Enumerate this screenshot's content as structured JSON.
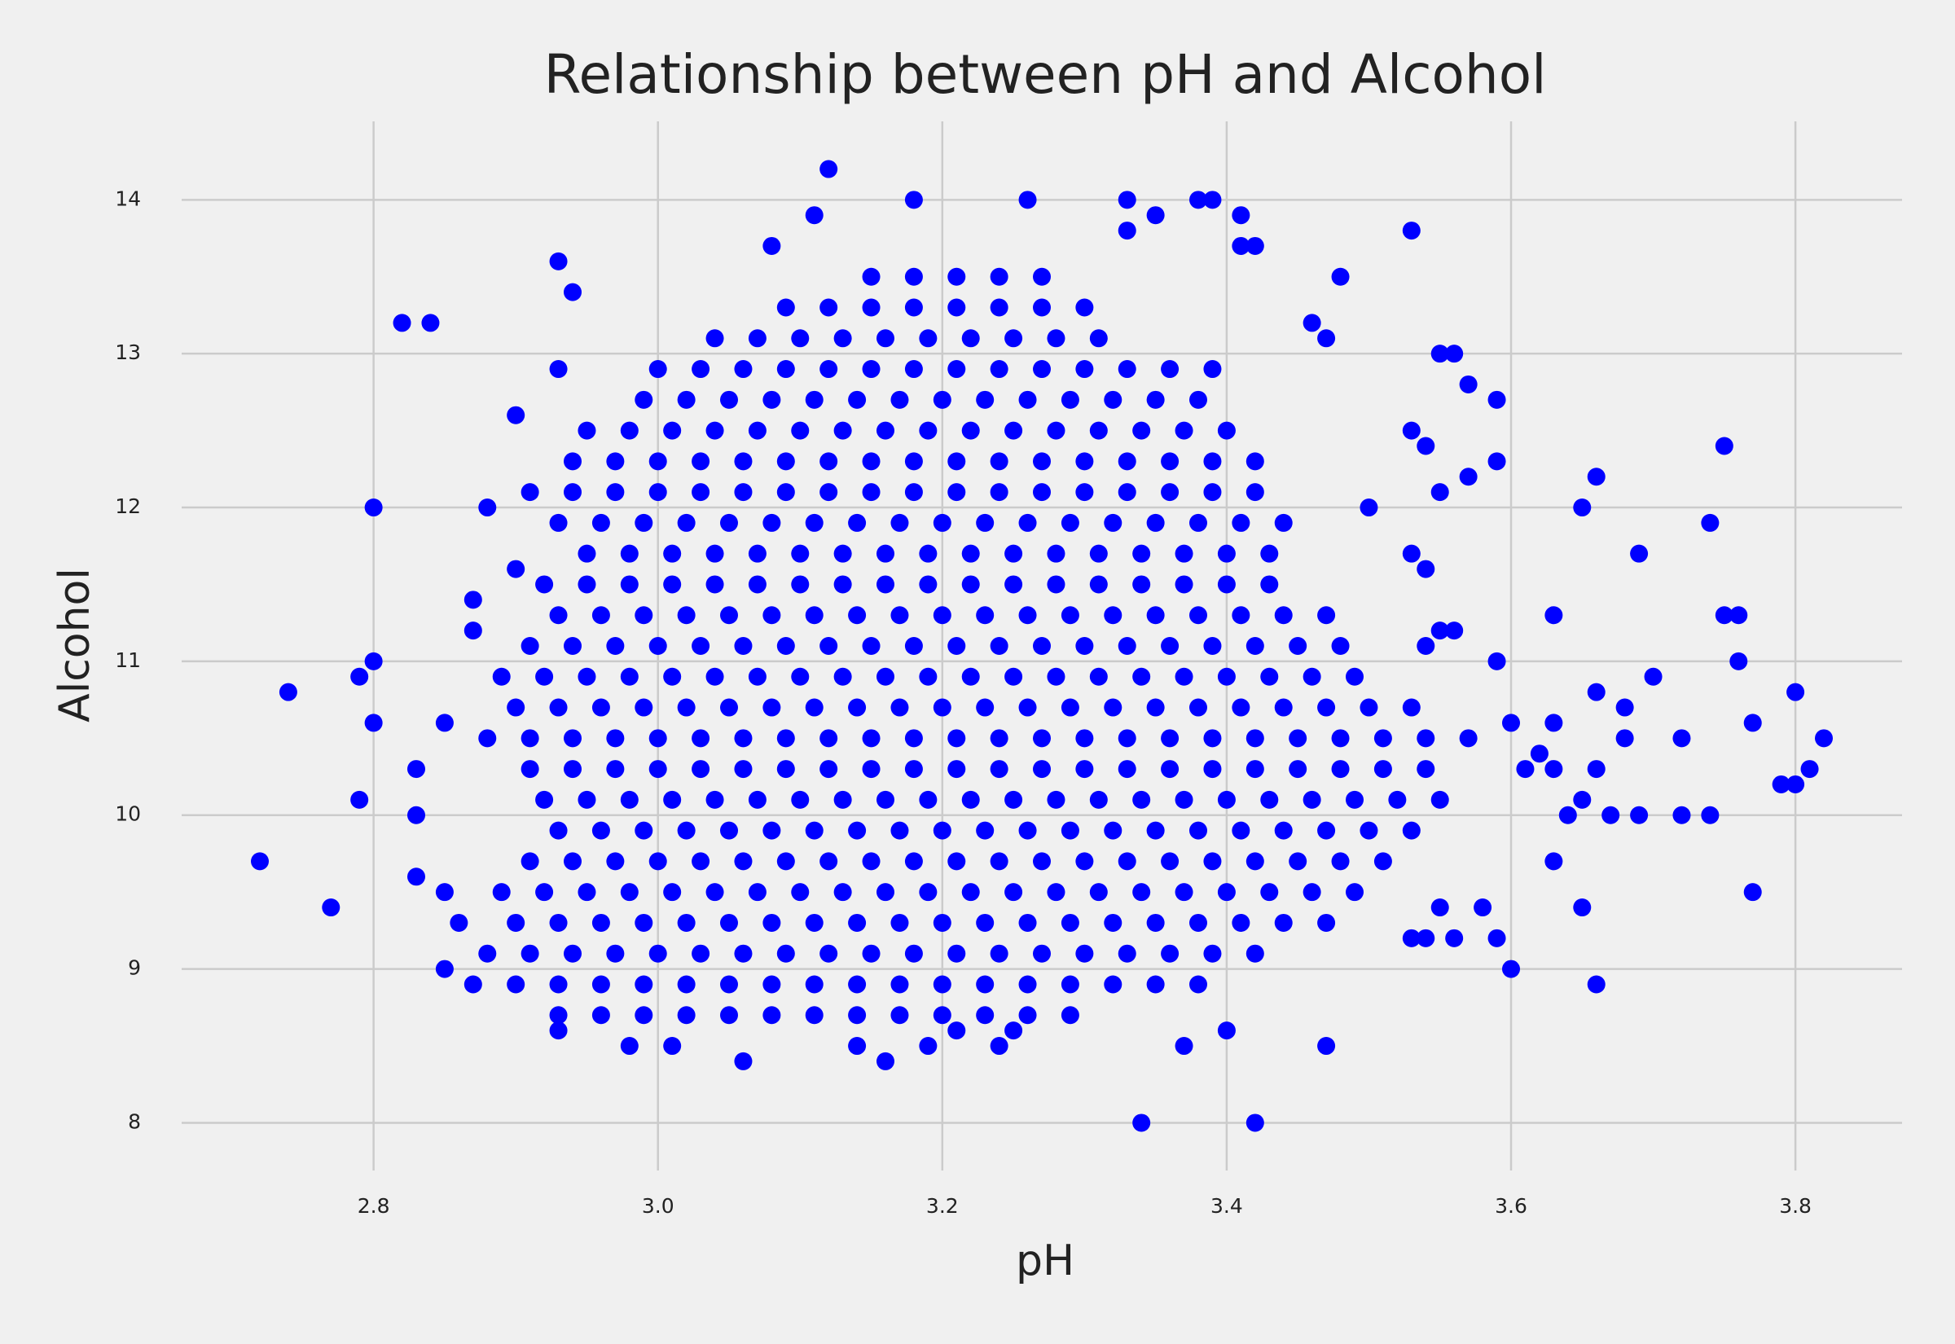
{
  "chart_data": {
    "type": "scatter",
    "title": "Relationship between pH and Alcohol",
    "xlabel": "pH",
    "ylabel": "Alcohol",
    "color": "#0000ff",
    "grid": true,
    "xlim": [
      2.665,
      3.875
    ],
    "ylim": [
      7.69,
      14.51
    ],
    "xticks": [
      2.8,
      {
        "value": 3,
        "label": "3.0"
      },
      3.2,
      3.4,
      3.6,
      3.8
    ],
    "yticks": [
      8,
      9,
      10,
      11,
      12,
      13,
      14
    ],
    "x": [
      2.72,
      2.74,
      2.77,
      2.79,
      2.79,
      2.8,
      2.8,
      2.8,
      2.82,
      2.84,
      2.83,
      2.83,
      2.83,
      2.85,
      2.85,
      2.85,
      2.86,
      2.87,
      2.87,
      2.88,
      2.9,
      2.9,
      2.93,
      2.94,
      2.93,
      3.12,
      3.11,
      3.08,
      3.18,
      3.26,
      3.33,
      3.33,
      3.35,
      3.38,
      3.39,
      3.41,
      3.41,
      3.42,
      3.48,
      3.53,
      3.46,
      3.47,
      3.55,
      3.56,
      3.57,
      3.59,
      3.59,
      3.57,
      3.55,
      3.53,
      3.54,
      3.5,
      3.53,
      3.54,
      3.54,
      3.55,
      3.56,
      3.59,
      3.63,
      3.65,
      3.66,
      3.69,
      3.74,
      3.75,
      3.75,
      3.76,
      3.76,
      3.7,
      3.66,
      3.68,
      3.68,
      3.72,
      3.77,
      3.8,
      3.82,
      3.81,
      3.79,
      3.8,
      3.74,
      3.72,
      3.69,
      3.67,
      3.64,
      3.65,
      3.66,
      3.63,
      3.63,
      3.62,
      3.6,
      3.61,
      3.63,
      3.65,
      3.66,
      3.77,
      3.6,
      3.59,
      3.56,
      3.58,
      3.55,
      3.53,
      3.54,
      3.47,
      3.37,
      3.4,
      3.34,
      3.42,
      3.06,
      3.16,
      3.01,
      2.98,
      3.14,
      3.19,
      3.24,
      2.93,
      3.25,
      3.21,
      2.93,
      2.96,
      2.99,
      3.02,
      3.05,
      3.08,
      3.11,
      3.14,
      3.17,
      3.2,
      3.23,
      3.26,
      3.29,
      2.87,
      2.9,
      2.93,
      2.96,
      2.99,
      3.02,
      3.05,
      3.08,
      3.11,
      3.14,
      3.17,
      3.2,
      3.23,
      3.26,
      3.29,
      3.32,
      3.35,
      3.38,
      2.88,
      2.91,
      2.94,
      2.97,
      3.0,
      3.03,
      3.06,
      3.09,
      3.12,
      3.15,
      3.18,
      3.21,
      3.24,
      3.27,
      3.3,
      3.33,
      3.36,
      3.39,
      3.42,
      2.9,
      2.93,
      2.96,
      2.99,
      3.02,
      3.05,
      3.08,
      3.11,
      3.14,
      3.17,
      3.2,
      3.23,
      3.26,
      3.29,
      3.32,
      3.35,
      3.38,
      3.41,
      3.44,
      3.47,
      2.89,
      2.92,
      2.95,
      2.98,
      3.01,
      3.04,
      3.07,
      3.1,
      3.13,
      3.16,
      3.19,
      3.22,
      3.25,
      3.28,
      3.31,
      3.34,
      3.37,
      3.4,
      3.43,
      3.46,
      3.49,
      2.91,
      2.94,
      2.97,
      3.0,
      3.03,
      3.06,
      3.09,
      3.12,
      3.15,
      3.18,
      3.21,
      3.24,
      3.27,
      3.3,
      3.33,
      3.36,
      3.39,
      3.42,
      3.45,
      3.48,
      3.51,
      2.93,
      2.96,
      2.99,
      3.02,
      3.05,
      3.08,
      3.11,
      3.14,
      3.17,
      3.2,
      3.23,
      3.26,
      3.29,
      3.32,
      3.35,
      3.38,
      3.41,
      3.44,
      3.47,
      3.5,
      3.53,
      2.92,
      2.95,
      2.98,
      3.01,
      3.04,
      3.07,
      3.1,
      3.13,
      3.16,
      3.19,
      3.22,
      3.25,
      3.28,
      3.31,
      3.34,
      3.37,
      3.4,
      3.43,
      3.46,
      3.49,
      3.52,
      3.55,
      2.91,
      2.94,
      2.97,
      3.0,
      3.03,
      3.06,
      3.09,
      3.12,
      3.15,
      3.18,
      3.21,
      3.24,
      3.27,
      3.3,
      3.33,
      3.36,
      3.39,
      3.42,
      3.45,
      3.48,
      3.51,
      3.54,
      2.88,
      2.91,
      2.94,
      2.97,
      3.0,
      3.03,
      3.06,
      3.09,
      3.12,
      3.15,
      3.18,
      3.21,
      3.24,
      3.27,
      3.3,
      3.33,
      3.36,
      3.39,
      3.42,
      3.45,
      3.48,
      3.51,
      3.54,
      3.57,
      2.9,
      2.93,
      2.96,
      2.99,
      3.02,
      3.05,
      3.08,
      3.11,
      3.14,
      3.17,
      3.2,
      3.23,
      3.26,
      3.29,
      3.32,
      3.35,
      3.38,
      3.41,
      3.44,
      3.47,
      3.5,
      3.53,
      2.89,
      2.92,
      2.95,
      2.98,
      3.01,
      3.04,
      3.07,
      3.1,
      3.13,
      3.16,
      3.19,
      3.22,
      3.25,
      3.28,
      3.31,
      3.34,
      3.37,
      3.4,
      3.43,
      3.46,
      3.49,
      2.91,
      2.94,
      2.97,
      3.0,
      3.03,
      3.06,
      3.09,
      3.12,
      3.15,
      3.18,
      3.21,
      3.24,
      3.27,
      3.3,
      3.33,
      3.36,
      3.39,
      3.42,
      3.45,
      3.48,
      2.93,
      2.96,
      2.99,
      3.02,
      3.05,
      3.08,
      3.11,
      3.14,
      3.17,
      3.2,
      3.23,
      3.26,
      3.29,
      3.32,
      3.35,
      3.38,
      3.41,
      3.44,
      3.47,
      2.92,
      2.95,
      2.98,
      3.01,
      3.04,
      3.07,
      3.1,
      3.13,
      3.16,
      3.19,
      3.22,
      3.25,
      3.28,
      3.31,
      3.34,
      3.37,
      3.4,
      3.43,
      2.95,
      2.98,
      3.01,
      3.04,
      3.07,
      3.1,
      3.13,
      3.16,
      3.19,
      3.22,
      3.25,
      3.28,
      3.31,
      3.34,
      3.37,
      3.4,
      3.43,
      2.93,
      2.96,
      2.99,
      3.02,
      3.05,
      3.08,
      3.11,
      3.14,
      3.17,
      3.2,
      3.23,
      3.26,
      3.29,
      3.32,
      3.35,
      3.38,
      3.41,
      3.44,
      2.91,
      2.94,
      2.97,
      3.0,
      3.03,
      3.06,
      3.09,
      3.12,
      3.15,
      3.18,
      3.21,
      3.24,
      3.27,
      3.3,
      3.33,
      3.36,
      3.39,
      3.42,
      2.94,
      2.97,
      3.0,
      3.03,
      3.06,
      3.09,
      3.12,
      3.15,
      3.18,
      3.21,
      3.24,
      3.27,
      3.3,
      3.33,
      3.36,
      3.39,
      3.42,
      2.95,
      2.98,
      3.01,
      3.04,
      3.07,
      3.1,
      3.13,
      3.16,
      3.19,
      3.22,
      3.25,
      3.28,
      3.31,
      3.34,
      3.37,
      3.4,
      2.99,
      3.02,
      3.05,
      3.08,
      3.11,
      3.14,
      3.17,
      3.2,
      3.23,
      3.26,
      3.29,
      3.32,
      3.35,
      3.38,
      3.0,
      3.03,
      3.06,
      3.09,
      3.12,
      3.15,
      3.18,
      3.21,
      3.24,
      3.27,
      3.3,
      3.33,
      3.36,
      3.39,
      3.04,
      3.07,
      3.1,
      3.13,
      3.16,
      3.19,
      3.22,
      3.25,
      3.28,
      3.31,
      3.09,
      3.12,
      3.15,
      3.18,
      3.21,
      3.24,
      3.27,
      3.3,
      3.15,
      3.18,
      3.21,
      3.24,
      3.27
    ],
    "values": [
      9.7,
      10.8,
      9.4,
      10.1,
      10.9,
      11.0,
      10.6,
      12.0,
      13.2,
      13.2,
      10.3,
      10.0,
      9.6,
      10.6,
      9.5,
      9.0,
      9.3,
      11.4,
      11.2,
      12.0,
      12.6,
      11.6,
      13.6,
      13.4,
      12.9,
      14.2,
      13.9,
      13.7,
      14.0,
      14.0,
      14.0,
      13.8,
      13.9,
      14.0,
      14.0,
      13.9,
      13.7,
      13.7,
      13.5,
      13.8,
      13.2,
      13.1,
      13.0,
      13.0,
      12.8,
      12.7,
      12.3,
      12.2,
      12.1,
      12.5,
      12.4,
      12.0,
      11.7,
      11.6,
      11.1,
      11.2,
      11.2,
      11.0,
      11.3,
      12.0,
      12.2,
      11.7,
      11.9,
      12.4,
      11.3,
      11.3,
      11.0,
      10.9,
      10.8,
      10.7,
      10.5,
      10.5,
      10.6,
      10.8,
      10.5,
      10.3,
      10.2,
      10.2,
      10.0,
      10.0,
      10.0,
      10.0,
      10.0,
      10.1,
      10.3,
      10.3,
      10.6,
      10.4,
      10.6,
      10.3,
      9.7,
      9.4,
      8.9,
      9.5,
      9.0,
      9.2,
      9.2,
      9.4,
      9.4,
      9.2,
      9.2,
      8.5,
      8.5,
      8.6,
      8.0,
      8.0,
      8.4,
      8.4,
      8.5,
      8.5,
      8.5,
      8.5,
      8.5,
      8.6,
      8.6,
      8.6,
      8.7,
      8.7,
      8.7,
      8.7,
      8.7,
      8.7,
      8.7,
      8.7,
      8.7,
      8.7,
      8.7,
      8.7,
      8.7,
      8.9,
      8.9,
      8.9,
      8.9,
      8.9,
      8.9,
      8.9,
      8.9,
      8.9,
      8.9,
      8.9,
      8.9,
      8.9,
      8.9,
      8.9,
      8.9,
      8.9,
      8.9,
      9.1,
      9.1,
      9.1,
      9.1,
      9.1,
      9.1,
      9.1,
      9.1,
      9.1,
      9.1,
      9.1,
      9.1,
      9.1,
      9.1,
      9.1,
      9.1,
      9.1,
      9.1,
      9.1,
      9.3,
      9.3,
      9.3,
      9.3,
      9.3,
      9.3,
      9.3,
      9.3,
      9.3,
      9.3,
      9.3,
      9.3,
      9.3,
      9.3,
      9.3,
      9.3,
      9.3,
      9.3,
      9.3,
      9.3,
      9.5,
      9.5,
      9.5,
      9.5,
      9.5,
      9.5,
      9.5,
      9.5,
      9.5,
      9.5,
      9.5,
      9.5,
      9.5,
      9.5,
      9.5,
      9.5,
      9.5,
      9.5,
      9.5,
      9.5,
      9.5,
      9.7,
      9.7,
      9.7,
      9.7,
      9.7,
      9.7,
      9.7,
      9.7,
      9.7,
      9.7,
      9.7,
      9.7,
      9.7,
      9.7,
      9.7,
      9.7,
      9.7,
      9.7,
      9.7,
      9.7,
      9.7,
      9.9,
      9.9,
      9.9,
      9.9,
      9.9,
      9.9,
      9.9,
      9.9,
      9.9,
      9.9,
      9.9,
      9.9,
      9.9,
      9.9,
      9.9,
      9.9,
      9.9,
      9.9,
      9.9,
      9.9,
      9.9,
      10.1,
      10.1,
      10.1,
      10.1,
      10.1,
      10.1,
      10.1,
      10.1,
      10.1,
      10.1,
      10.1,
      10.1,
      10.1,
      10.1,
      10.1,
      10.1,
      10.1,
      10.1,
      10.1,
      10.1,
      10.1,
      10.1,
      10.3,
      10.3,
      10.3,
      10.3,
      10.3,
      10.3,
      10.3,
      10.3,
      10.3,
      10.3,
      10.3,
      10.3,
      10.3,
      10.3,
      10.3,
      10.3,
      10.3,
      10.3,
      10.3,
      10.3,
      10.3,
      10.3,
      10.5,
      10.5,
      10.5,
      10.5,
      10.5,
      10.5,
      10.5,
      10.5,
      10.5,
      10.5,
      10.5,
      10.5,
      10.5,
      10.5,
      10.5,
      10.5,
      10.5,
      10.5,
      10.5,
      10.5,
      10.5,
      10.5,
      10.5,
      10.5,
      10.7,
      10.7,
      10.7,
      10.7,
      10.7,
      10.7,
      10.7,
      10.7,
      10.7,
      10.7,
      10.7,
      10.7,
      10.7,
      10.7,
      10.7,
      10.7,
      10.7,
      10.7,
      10.7,
      10.7,
      10.7,
      10.7,
      10.9,
      10.9,
      10.9,
      10.9,
      10.9,
      10.9,
      10.9,
      10.9,
      10.9,
      10.9,
      10.9,
      10.9,
      10.9,
      10.9,
      10.9,
      10.9,
      10.9,
      10.9,
      10.9,
      10.9,
      10.9,
      11.1,
      11.1,
      11.1,
      11.1,
      11.1,
      11.1,
      11.1,
      11.1,
      11.1,
      11.1,
      11.1,
      11.1,
      11.1,
      11.1,
      11.1,
      11.1,
      11.1,
      11.1,
      11.1,
      11.1,
      11.3,
      11.3,
      11.3,
      11.3,
      11.3,
      11.3,
      11.3,
      11.3,
      11.3,
      11.3,
      11.3,
      11.3,
      11.3,
      11.3,
      11.3,
      11.3,
      11.3,
      11.3,
      11.3,
      11.5,
      11.5,
      11.5,
      11.5,
      11.5,
      11.5,
      11.5,
      11.5,
      11.5,
      11.5,
      11.5,
      11.5,
      11.5,
      11.5,
      11.5,
      11.5,
      11.5,
      11.5,
      11.7,
      11.7,
      11.7,
      11.7,
      11.7,
      11.7,
      11.7,
      11.7,
      11.7,
      11.7,
      11.7,
      11.7,
      11.7,
      11.7,
      11.7,
      11.7,
      11.7,
      11.9,
      11.9,
      11.9,
      11.9,
      11.9,
      11.9,
      11.9,
      11.9,
      11.9,
      11.9,
      11.9,
      11.9,
      11.9,
      11.9,
      11.9,
      11.9,
      11.9,
      11.9,
      12.1,
      12.1,
      12.1,
      12.1,
      12.1,
      12.1,
      12.1,
      12.1,
      12.1,
      12.1,
      12.1,
      12.1,
      12.1,
      12.1,
      12.1,
      12.1,
      12.1,
      12.1,
      12.3,
      12.3,
      12.3,
      12.3,
      12.3,
      12.3,
      12.3,
      12.3,
      12.3,
      12.3,
      12.3,
      12.3,
      12.3,
      12.3,
      12.3,
      12.3,
      12.3,
      12.5,
      12.5,
      12.5,
      12.5,
      12.5,
      12.5,
      12.5,
      12.5,
      12.5,
      12.5,
      12.5,
      12.5,
      12.5,
      12.5,
      12.5,
      12.5,
      12.7,
      12.7,
      12.7,
      12.7,
      12.7,
      12.7,
      12.7,
      12.7,
      12.7,
      12.7,
      12.7,
      12.7,
      12.7,
      12.7,
      12.9,
      12.9,
      12.9,
      12.9,
      12.9,
      12.9,
      12.9,
      12.9,
      12.9,
      12.9,
      12.9,
      12.9,
      12.9,
      12.9,
      13.1,
      13.1,
      13.1,
      13.1,
      13.1,
      13.1,
      13.1,
      13.1,
      13.1,
      13.1,
      13.3,
      13.3,
      13.3,
      13.3,
      13.3,
      13.3,
      13.3,
      13.3,
      13.5,
      13.5,
      13.5,
      13.5,
      13.5
    ]
  }
}
